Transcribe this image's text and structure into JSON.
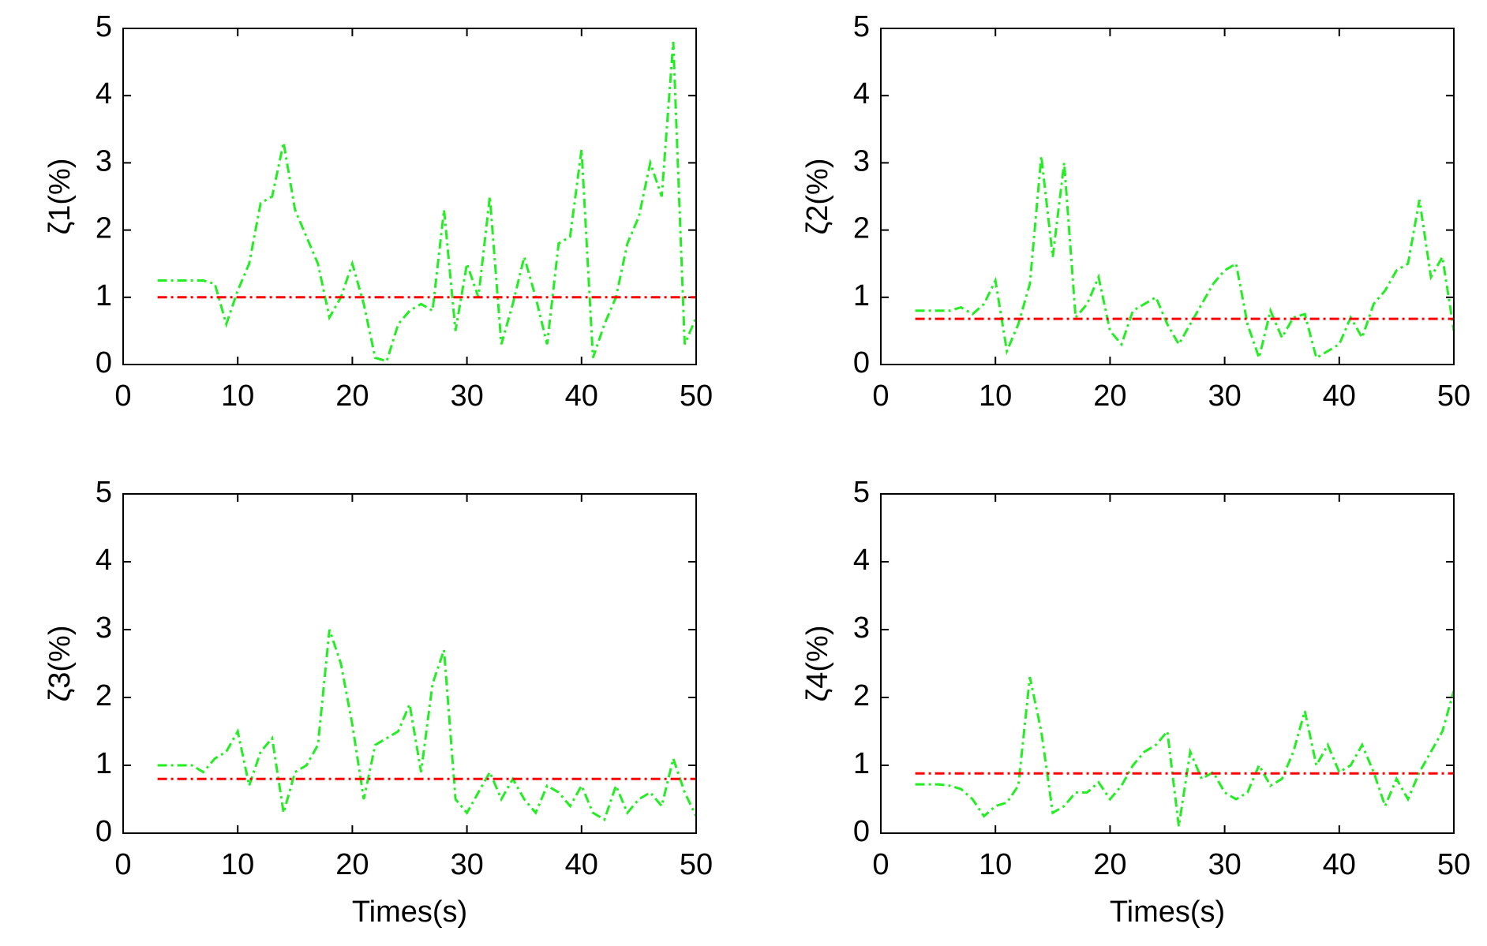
{
  "chart_data": [
    {
      "type": "line",
      "ylabel": "ζ1(%)",
      "x": [
        3,
        4,
        5,
        6,
        7,
        8,
        9,
        10,
        11,
        12,
        13,
        14,
        15,
        16,
        17,
        18,
        19,
        20,
        21,
        22,
        23,
        24,
        25,
        26,
        27,
        28,
        29,
        30,
        31,
        32,
        33,
        34,
        35,
        36,
        37,
        38,
        39,
        40,
        41,
        42,
        43,
        44,
        45,
        46,
        47,
        48,
        49,
        50
      ],
      "series": [
        {
          "color": "#22ee22",
          "values": [
            1.25,
            1.25,
            1.25,
            1.25,
            1.25,
            1.2,
            0.6,
            1.1,
            1.5,
            2.4,
            2.5,
            3.3,
            2.3,
            1.9,
            1.5,
            0.7,
            1.0,
            1.5,
            0.9,
            0.1,
            0.05,
            0.6,
            0.8,
            0.9,
            0.8,
            2.3,
            0.5,
            1.5,
            1.0,
            2.5,
            0.3,
            0.9,
            1.6,
            1.0,
            0.3,
            1.8,
            1.9,
            3.2,
            0.1,
            0.6,
            1.0,
            1.8,
            2.2,
            3.0,
            2.5,
            4.8,
            0.3,
            0.7
          ]
        },
        {
          "color": "#ff0000",
          "x": [
            3,
            50
          ],
          "values": [
            1.0,
            1.0
          ]
        }
      ],
      "xlim": [
        0,
        50
      ],
      "xticks": [
        0,
        10,
        20,
        30,
        40,
        50
      ],
      "ylim": [
        0,
        5
      ],
      "yticks": [
        0,
        1,
        2,
        3,
        4,
        5
      ]
    },
    {
      "type": "line",
      "ylabel": "ζ2(%)",
      "x": [
        3,
        4,
        5,
        6,
        7,
        8,
        9,
        10,
        11,
        12,
        13,
        14,
        15,
        16,
        17,
        18,
        19,
        20,
        21,
        22,
        23,
        24,
        25,
        26,
        27,
        28,
        29,
        30,
        31,
        32,
        33,
        34,
        35,
        36,
        37,
        38,
        39,
        40,
        41,
        42,
        43,
        44,
        45,
        46,
        47,
        48,
        49,
        50
      ],
      "series": [
        {
          "color": "#22ee22",
          "values": [
            0.8,
            0.8,
            0.8,
            0.8,
            0.85,
            0.75,
            0.9,
            1.25,
            0.2,
            0.6,
            1.2,
            3.1,
            1.6,
            3.0,
            0.7,
            0.9,
            1.3,
            0.5,
            0.3,
            0.8,
            0.9,
            1.0,
            0.6,
            0.3,
            0.6,
            0.9,
            1.2,
            1.4,
            1.5,
            0.6,
            0.1,
            0.8,
            0.4,
            0.7,
            0.75,
            0.1,
            0.2,
            0.3,
            0.7,
            0.4,
            0.9,
            1.1,
            1.4,
            1.5,
            2.45,
            1.3,
            1.6,
            0.5
          ]
        },
        {
          "color": "#ff0000",
          "x": [
            3,
            50
          ],
          "values": [
            0.68,
            0.68
          ]
        }
      ],
      "xlim": [
        0,
        50
      ],
      "xticks": [
        0,
        10,
        20,
        30,
        40,
        50
      ],
      "ylim": [
        0,
        5
      ],
      "yticks": [
        0,
        1,
        2,
        3,
        4,
        5
      ]
    },
    {
      "type": "line",
      "ylabel": "ζ3(%)",
      "xlabel": "Times(s)",
      "x": [
        3,
        4,
        5,
        6,
        7,
        8,
        9,
        10,
        11,
        12,
        13,
        14,
        15,
        16,
        17,
        18,
        19,
        20,
        21,
        22,
        23,
        24,
        25,
        26,
        27,
        28,
        29,
        30,
        31,
        32,
        33,
        34,
        35,
        36,
        37,
        38,
        39,
        40,
        41,
        42,
        43,
        44,
        45,
        46,
        47,
        48,
        49,
        50
      ],
      "series": [
        {
          "color": "#22ee22",
          "values": [
            1.0,
            1.0,
            1.0,
            1.0,
            0.9,
            1.1,
            1.2,
            1.5,
            0.7,
            1.2,
            1.4,
            0.3,
            0.9,
            1.0,
            1.3,
            3.0,
            2.5,
            1.6,
            0.5,
            1.3,
            1.4,
            1.5,
            1.9,
            0.9,
            2.2,
            2.7,
            0.5,
            0.3,
            0.6,
            0.9,
            0.5,
            0.8,
            0.5,
            0.3,
            0.7,
            0.6,
            0.4,
            0.7,
            0.3,
            0.2,
            0.7,
            0.3,
            0.5,
            0.6,
            0.4,
            1.1,
            0.6,
            0.25
          ]
        },
        {
          "color": "#ff0000",
          "x": [
            3,
            50
          ],
          "values": [
            0.8,
            0.8
          ]
        }
      ],
      "xlim": [
        0,
        50
      ],
      "xticks": [
        0,
        10,
        20,
        30,
        40,
        50
      ],
      "ylim": [
        0,
        5
      ],
      "yticks": [
        0,
        1,
        2,
        3,
        4,
        5
      ]
    },
    {
      "type": "line",
      "ylabel": "ζ4(%)",
      "xlabel": "Times(s)",
      "x": [
        3,
        4,
        5,
        6,
        7,
        8,
        9,
        10,
        11,
        12,
        13,
        14,
        15,
        16,
        17,
        18,
        19,
        20,
        21,
        22,
        23,
        24,
        25,
        26,
        27,
        28,
        29,
        30,
        31,
        32,
        33,
        34,
        35,
        36,
        37,
        38,
        39,
        40,
        41,
        42,
        43,
        44,
        45,
        46,
        47,
        48,
        49,
        50
      ],
      "series": [
        {
          "color": "#22ee22",
          "values": [
            0.72,
            0.72,
            0.72,
            0.7,
            0.65,
            0.5,
            0.25,
            0.4,
            0.45,
            0.7,
            2.3,
            1.5,
            0.3,
            0.4,
            0.6,
            0.6,
            0.75,
            0.5,
            0.7,
            1.0,
            1.2,
            1.3,
            1.5,
            0.1,
            1.2,
            0.8,
            0.9,
            0.6,
            0.5,
            0.6,
            1.0,
            0.7,
            0.8,
            1.2,
            1.8,
            1.0,
            1.3,
            0.9,
            1.0,
            1.3,
            0.9,
            0.4,
            0.8,
            0.5,
            0.9,
            1.2,
            1.5,
            2.1
          ]
        },
        {
          "color": "#ff0000",
          "x": [
            3,
            50
          ],
          "values": [
            0.88,
            0.88
          ]
        }
      ],
      "xlim": [
        0,
        50
      ],
      "xticks": [
        0,
        10,
        20,
        30,
        40,
        50
      ],
      "ylim": [
        0,
        5
      ],
      "yticks": [
        0,
        1,
        2,
        3,
        4,
        5
      ]
    }
  ]
}
